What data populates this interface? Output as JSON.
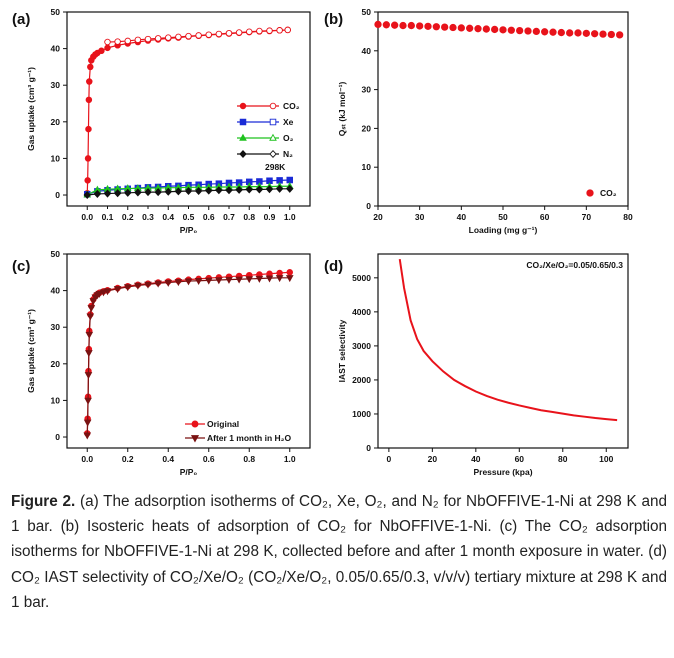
{
  "panels": [
    {
      "id": "a",
      "label": "(a)",
      "chart_data": {
        "type": "scatter",
        "xlabel": "P/P₀",
        "ylabel": "Gas uptake (cm³ g⁻¹)",
        "xlim": [
          -0.1,
          1.1
        ],
        "ylim": [
          -3,
          50
        ],
        "x_ticks": [
          "0.0",
          "0.2",
          "0.4",
          "0.6",
          "0.8",
          "1.0"
        ],
        "x_tick_values": [
          0,
          0.2,
          0.4,
          0.6,
          0.8,
          1.0
        ],
        "x_minor_ticks": [
          "0.1",
          "0.3",
          "0.5",
          "0.7",
          "0.9"
        ],
        "x_minor_values": [
          0.1,
          0.3,
          0.5,
          0.7,
          0.9
        ],
        "y_ticks": [
          "0",
          "10",
          "20",
          "30",
          "40",
          "50"
        ],
        "y_tick_values": [
          0,
          10,
          20,
          30,
          40,
          50
        ],
        "annotation": "298K",
        "legend_position": "right-middle",
        "series": [
          {
            "name": "CO₂",
            "color": "#e8131b",
            "marker": "circle",
            "x": [
              0.0,
              0.002,
              0.004,
              0.006,
              0.008,
              0.01,
              0.015,
              0.02,
              0.03,
              0.04,
              0.05,
              0.07,
              0.1,
              0.15,
              0.2,
              0.25,
              0.3,
              0.35,
              0.4,
              0.45,
              0.5,
              0.55,
              0.6,
              0.65,
              0.7,
              0.75,
              0.8,
              0.85,
              0.9,
              0.95,
              0.99
            ],
            "y": [
              0.5,
              4,
              10,
              18,
              26,
              31,
              35,
              36.8,
              37.8,
              38.4,
              38.8,
              39.4,
              40.2,
              40.9,
              41.4,
              41.8,
              42.2,
              42.5,
              42.8,
              43.0,
              43.3,
              43.5,
              43.7,
              43.9,
              44.1,
              44.3,
              44.5,
              44.7,
              44.8,
              45.0,
              45.1
            ],
            "desorption_x": [
              0.1,
              0.15,
              0.2,
              0.25,
              0.3,
              0.35,
              0.4,
              0.45,
              0.5,
              0.55,
              0.6,
              0.65,
              0.7,
              0.75,
              0.8,
              0.85,
              0.9,
              0.95,
              0.99
            ],
            "desorption_y": [
              41.8,
              41.9,
              42.1,
              42.4,
              42.6,
              42.8,
              43.0,
              43.2,
              43.4,
              43.6,
              43.8,
              44.0,
              44.2,
              44.4,
              44.6,
              44.8,
              44.9,
              45.0,
              45.1
            ]
          },
          {
            "name": "Xe",
            "color": "#1a2bd6",
            "marker": "square",
            "x": [
              0.0,
              0.05,
              0.1,
              0.15,
              0.2,
              0.25,
              0.3,
              0.35,
              0.4,
              0.45,
              0.5,
              0.55,
              0.6,
              0.65,
              0.7,
              0.75,
              0.8,
              0.85,
              0.9,
              0.95,
              1.0
            ],
            "y": [
              0.2,
              1.0,
              1.3,
              1.5,
              1.7,
              1.9,
              2.1,
              2.2,
              2.4,
              2.5,
              2.7,
              2.8,
              3.0,
              3.1,
              3.3,
              3.4,
              3.6,
              3.7,
              3.9,
              4.0,
              4.1
            ]
          },
          {
            "name": "O₂",
            "color": "#1fc21f",
            "marker": "triangle",
            "x": [
              0.0,
              0.05,
              0.1,
              0.15,
              0.2,
              0.25,
              0.3,
              0.35,
              0.4,
              0.45,
              0.5,
              0.55,
              0.6,
              0.65,
              0.7,
              0.75,
              0.8,
              0.85,
              0.9,
              0.95,
              1.0
            ],
            "y": [
              0.1,
              1.4,
              1.6,
              1.7,
              1.8,
              1.8,
              1.9,
              1.9,
              2.0,
              2.0,
              2.1,
              2.1,
              2.1,
              2.2,
              2.2,
              2.2,
              2.3,
              2.3,
              2.3,
              2.4,
              2.4
            ]
          },
          {
            "name": "N₂",
            "color": "#111111",
            "marker": "diamond",
            "x": [
              0.0,
              0.05,
              0.1,
              0.15,
              0.2,
              0.25,
              0.3,
              0.35,
              0.4,
              0.45,
              0.5,
              0.55,
              0.6,
              0.65,
              0.7,
              0.75,
              0.8,
              0.85,
              0.9,
              0.95,
              1.0
            ],
            "y": [
              0.0,
              0.3,
              0.4,
              0.5,
              0.6,
              0.7,
              0.8,
              0.8,
              0.9,
              1.0,
              1.1,
              1.1,
              1.2,
              1.3,
              1.3,
              1.4,
              1.5,
              1.5,
              1.6,
              1.7,
              1.7
            ]
          }
        ]
      }
    },
    {
      "id": "b",
      "label": "(b)",
      "chart_data": {
        "type": "scatter",
        "xlabel": "Loading (mg g⁻¹)",
        "ylabel": "Qₛₜ (kJ mol⁻¹)",
        "xlim": [
          20,
          80
        ],
        "ylim": [
          0,
          50
        ],
        "x_ticks": [
          "20",
          "30",
          "40",
          "50",
          "60",
          "70",
          "80"
        ],
        "x_tick_values": [
          20,
          30,
          40,
          50,
          60,
          70,
          80
        ],
        "y_ticks": [
          "0",
          "10",
          "20",
          "30",
          "40",
          "50"
        ],
        "y_tick_values": [
          0,
          10,
          20,
          30,
          40,
          50
        ],
        "legend_position": "bottom-right",
        "series": [
          {
            "name": "CO₂",
            "color": "#e8131b",
            "marker": "circle",
            "x": [
              20,
              22,
              24,
              26,
              28,
              30,
              32,
              34,
              36,
              38,
              40,
              42,
              44,
              46,
              48,
              50,
              52,
              54,
              56,
              58,
              60,
              62,
              64,
              66,
              68,
              70,
              72,
              74,
              76,
              78
            ],
            "y": [
              46.8,
              46.7,
              46.6,
              46.5,
              46.5,
              46.4,
              46.3,
              46.2,
              46.1,
              46.0,
              45.9,
              45.8,
              45.7,
              45.6,
              45.5,
              45.4,
              45.3,
              45.2,
              45.1,
              45.0,
              44.9,
              44.8,
              44.7,
              44.6,
              44.6,
              44.5,
              44.4,
              44.3,
              44.2,
              44.1
            ]
          }
        ]
      }
    },
    {
      "id": "c",
      "label": "(c)",
      "chart_data": {
        "type": "line",
        "xlabel": "P/P₀",
        "ylabel": "Gas uptake (cm³ g⁻¹)",
        "xlim": [
          -0.1,
          1.1
        ],
        "ylim": [
          -3,
          50
        ],
        "x_ticks": [
          "0.0",
          "0.2",
          "0.4",
          "0.6",
          "0.8",
          "1.0"
        ],
        "x_tick_values": [
          0,
          0.2,
          0.4,
          0.6,
          0.8,
          1.0
        ],
        "y_ticks": [
          "0",
          "10",
          "20",
          "30",
          "40",
          "50"
        ],
        "y_tick_values": [
          0,
          10,
          20,
          30,
          40,
          50
        ],
        "legend_position": "bottom-right",
        "series": [
          {
            "name": "Original",
            "color": "#e8131b",
            "marker": "circle",
            "x": [
              0.0,
              0.002,
              0.004,
              0.006,
              0.008,
              0.01,
              0.015,
              0.02,
              0.03,
              0.04,
              0.05,
              0.06,
              0.08,
              0.1,
              0.15,
              0.2,
              0.25,
              0.3,
              0.35,
              0.4,
              0.45,
              0.5,
              0.55,
              0.6,
              0.65,
              0.7,
              0.75,
              0.8,
              0.85,
              0.9,
              0.95,
              1.0
            ],
            "y": [
              1.0,
              5,
              11,
              18,
              24,
              29,
              33.5,
              35.8,
              37.6,
              38.5,
              39.0,
              39.4,
              39.8,
              40.1,
              40.7,
              41.2,
              41.6,
              41.9,
              42.2,
              42.5,
              42.7,
              43.0,
              43.2,
              43.4,
              43.6,
              43.8,
              44.0,
              44.2,
              44.4,
              44.6,
              44.8,
              45.0
            ]
          },
          {
            "name": "After 1 month in H₂O",
            "color": "#7a1212",
            "marker": "triangle-down",
            "x": [
              0.0,
              0.002,
              0.004,
              0.006,
              0.008,
              0.01,
              0.015,
              0.02,
              0.03,
              0.04,
              0.05,
              0.06,
              0.08,
              0.1,
              0.15,
              0.2,
              0.25,
              0.3,
              0.35,
              0.4,
              0.45,
              0.5,
              0.55,
              0.6,
              0.65,
              0.7,
              0.75,
              0.8,
              0.85,
              0.9,
              0.95,
              1.0
            ],
            "y": [
              0.5,
              4,
              10,
              17,
              23,
              28,
              33,
              35.3,
              37.2,
              38.2,
              38.8,
              39.2,
              39.6,
              39.9,
              40.5,
              41.0,
              41.4,
              41.7,
              42.0,
              42.2,
              42.4,
              42.6,
              42.7,
              42.8,
              42.9,
              43.0,
              43.1,
              43.2,
              43.3,
              43.4,
              43.5,
              43.5
            ]
          }
        ]
      }
    },
    {
      "id": "d",
      "label": "(d)",
      "chart_data": {
        "type": "line",
        "xlabel": "Pressure (kpa)",
        "ylabel": "IAST selectivity",
        "xlim": [
          -5,
          110
        ],
        "ylim": [
          0,
          5700
        ],
        "x_ticks": [
          "0",
          "20",
          "40",
          "60",
          "80",
          "100"
        ],
        "x_tick_values": [
          0,
          20,
          40,
          60,
          80,
          100
        ],
        "y_ticks": [
          "0",
          "1000",
          "2000",
          "3000",
          "4000",
          "5000"
        ],
        "y_tick_values": [
          0,
          1000,
          2000,
          3000,
          4000,
          5000
        ],
        "annotation": "CO₂/Xe/O₂=0.05/0.65/0.3",
        "series": [
          {
            "name": "CO₂ IAST selectivity",
            "color": "#e8131b",
            "x": [
              5,
              7,
              10,
              13,
              16,
              20,
              25,
              30,
              35,
              40,
              45,
              50,
              55,
              60,
              65,
              70,
              75,
              80,
              85,
              90,
              95,
              100,
              105
            ],
            "y": [
              5550,
              4700,
              3750,
              3200,
              2850,
              2550,
              2250,
              2000,
              1820,
              1660,
              1530,
              1420,
              1330,
              1250,
              1180,
              1110,
              1060,
              1010,
              960,
              920,
              880,
              850,
              820
            ]
          }
        ]
      }
    }
  ],
  "caption": {
    "figure_label": "Figure 2.",
    "text": "(a) The adsorption isotherms of CO₂, Xe, O₂, and N₂ for NbOFFIVE-1-Ni at 298 K and 1 bar. (b) Isosteric heats of adsorption of CO₂ for NbOFFIVE-1-Ni. (c) The CO₂ adsorption isotherms for NbOFFIVE-1-Ni at 298 K, collected before and after 1 month exposure in water. (d) CO₂ IAST selectivity of CO₂/Xe/O₂ (CO₂/Xe/O₂, 0.05/0.65/0.3, v/v/v) tertiary mixture at 298 K and 1 bar."
  }
}
